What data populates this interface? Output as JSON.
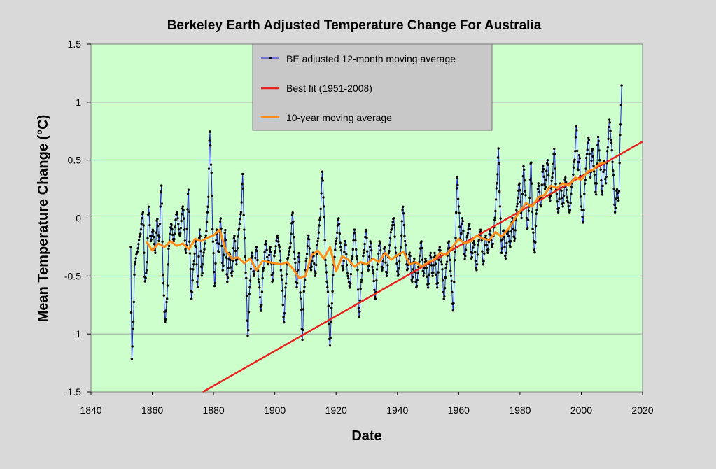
{
  "chart_data": {
    "type": "line",
    "title": "Berkeley Earth Adjusted Temperature Change For Australia",
    "xlabel": "Date",
    "ylabel": "Mean  Temperature  Change  (°C)",
    "xlim": [
      1840,
      2020
    ],
    "ylim": [
      -1.5,
      1.5
    ],
    "x_ticks": [
      "1840",
      "1860",
      "1880",
      "1900",
      "1920",
      "1940",
      "1960",
      "1980",
      "2000",
      "2020"
    ],
    "y_ticks": [
      "1.5",
      "1",
      "0.5",
      "0",
      "-0.5",
      "-1",
      "-1.5"
    ],
    "grid": "horizontal",
    "legend_position": "top-center",
    "colors": {
      "plot_background": "#ccffcc",
      "page_background": "#d9d9d9",
      "legend_background": "#c8c8c8",
      "moving_average": "#1f1fd0",
      "moving_average_points": "#000000",
      "best_fit": "#e8231f",
      "decadal_average": "#ff8c1a"
    },
    "series": [
      {
        "name": "BE adjusted 12-month moving average",
        "style": "line-with-dots",
        "keypoints": [
          [
            1853.0,
            -0.25
          ],
          [
            1853.3,
            -1.22
          ],
          [
            1853.8,
            -0.9
          ],
          [
            1854.3,
            -0.4
          ],
          [
            1855.0,
            -0.3
          ],
          [
            1856.0,
            -0.15
          ],
          [
            1857.0,
            0.05
          ],
          [
            1857.6,
            -0.55
          ],
          [
            1858.2,
            -0.45
          ],
          [
            1858.8,
            0.1
          ],
          [
            1859.5,
            -0.2
          ],
          [
            1860.2,
            -0.1
          ],
          [
            1861.0,
            -0.3
          ],
          [
            1861.6,
            0.0
          ],
          [
            1862.2,
            -0.2
          ],
          [
            1863.0,
            0.28
          ],
          [
            1863.6,
            -0.55
          ],
          [
            1864.2,
            -0.9
          ],
          [
            1864.8,
            -0.7
          ],
          [
            1865.4,
            -0.25
          ],
          [
            1866.2,
            -0.05
          ],
          [
            1867.0,
            -0.2
          ],
          [
            1868.0,
            0.05
          ],
          [
            1869.0,
            -0.15
          ],
          [
            1870.0,
            0.1
          ],
          [
            1871.0,
            -0.3
          ],
          [
            1871.8,
            0.25
          ],
          [
            1872.3,
            -0.3
          ],
          [
            1872.8,
            -0.7
          ],
          [
            1873.5,
            -0.4
          ],
          [
            1874.2,
            -0.2
          ],
          [
            1874.8,
            -0.6
          ],
          [
            1875.5,
            -0.1
          ],
          [
            1876.2,
            -0.5
          ],
          [
            1876.8,
            -0.3
          ],
          [
            1877.5,
            -0.15
          ],
          [
            1878.2,
            0.1
          ],
          [
            1878.8,
            0.75
          ],
          [
            1879.3,
            0.4
          ],
          [
            1879.8,
            -0.2
          ],
          [
            1880.4,
            -0.6
          ],
          [
            1881.0,
            -0.1
          ],
          [
            1881.6,
            -0.3
          ],
          [
            1882.3,
            0.0
          ],
          [
            1883.0,
            -0.45
          ],
          [
            1883.8,
            -0.1
          ],
          [
            1884.5,
            -0.55
          ],
          [
            1885.2,
            -0.3
          ],
          [
            1886.0,
            -0.5
          ],
          [
            1886.8,
            -0.15
          ],
          [
            1887.5,
            -0.4
          ],
          [
            1888.2,
            -0.1
          ],
          [
            1889.0,
            0.05
          ],
          [
            1889.5,
            0.38
          ],
          [
            1890.0,
            -0.1
          ],
          [
            1890.6,
            -0.5
          ],
          [
            1891.2,
            -1.02
          ],
          [
            1891.8,
            -0.6
          ],
          [
            1892.5,
            -0.3
          ],
          [
            1893.2,
            -0.5
          ],
          [
            1894.0,
            -0.25
          ],
          [
            1894.8,
            -0.55
          ],
          [
            1895.5,
            -0.8
          ],
          [
            1896.2,
            -0.45
          ],
          [
            1897.0,
            -0.2
          ],
          [
            1897.8,
            -0.4
          ],
          [
            1898.5,
            -0.25
          ],
          [
            1899.2,
            -0.55
          ],
          [
            1900.0,
            -0.3
          ],
          [
            1900.8,
            -0.15
          ],
          [
            1901.5,
            -0.25
          ],
          [
            1902.2,
            -0.5
          ],
          [
            1903.0,
            -0.9
          ],
          [
            1903.5,
            -0.6
          ],
          [
            1904.2,
            -0.35
          ],
          [
            1905.0,
            -0.25
          ],
          [
            1905.8,
            0.05
          ],
          [
            1906.5,
            -0.35
          ],
          [
            1907.2,
            -0.6
          ],
          [
            1907.8,
            -0.3
          ],
          [
            1908.5,
            -0.7
          ],
          [
            1909.0,
            -1.05
          ],
          [
            1909.6,
            -0.6
          ],
          [
            1910.3,
            -0.35
          ],
          [
            1911.0,
            -0.15
          ],
          [
            1911.8,
            -0.45
          ],
          [
            1912.5,
            -0.3
          ],
          [
            1913.2,
            -0.5
          ],
          [
            1914.0,
            -0.2
          ],
          [
            1914.8,
            0.0
          ],
          [
            1915.5,
            0.4
          ],
          [
            1916.0,
            0.1
          ],
          [
            1916.6,
            -0.4
          ],
          [
            1917.2,
            -0.6
          ],
          [
            1918.0,
            -1.1
          ],
          [
            1918.6,
            -0.75
          ],
          [
            1919.2,
            -0.4
          ],
          [
            1920.0,
            -0.2
          ],
          [
            1920.8,
            0.0
          ],
          [
            1921.5,
            -0.25
          ],
          [
            1922.2,
            -0.45
          ],
          [
            1923.0,
            -0.2
          ],
          [
            1923.8,
            -0.5
          ],
          [
            1924.5,
            -0.6
          ],
          [
            1925.2,
            -0.35
          ],
          [
            1926.0,
            -0.1
          ],
          [
            1926.8,
            -0.35
          ],
          [
            1927.5,
            -0.85
          ],
          [
            1928.2,
            -0.55
          ],
          [
            1929.0,
            -0.3
          ],
          [
            1929.8,
            -0.1
          ],
          [
            1930.5,
            -0.45
          ],
          [
            1931.2,
            -0.2
          ],
          [
            1932.0,
            -0.45
          ],
          [
            1932.8,
            -0.7
          ],
          [
            1933.5,
            -0.4
          ],
          [
            1934.2,
            -0.2
          ],
          [
            1935.0,
            -0.45
          ],
          [
            1935.8,
            -0.25
          ],
          [
            1936.5,
            -0.5
          ],
          [
            1937.2,
            -0.3
          ],
          [
            1938.0,
            -0.1
          ],
          [
            1938.8,
            0.0
          ],
          [
            1939.5,
            -0.3
          ],
          [
            1940.2,
            -0.5
          ],
          [
            1941.0,
            -0.3
          ],
          [
            1941.8,
            0.1
          ],
          [
            1942.5,
            -0.2
          ],
          [
            1943.2,
            -0.45
          ],
          [
            1944.0,
            -0.3
          ],
          [
            1944.8,
            -0.55
          ],
          [
            1945.5,
            -0.35
          ],
          [
            1946.2,
            -0.6
          ],
          [
            1947.0,
            -0.4
          ],
          [
            1947.8,
            -0.2
          ],
          [
            1948.5,
            -0.5
          ],
          [
            1949.2,
            -0.35
          ],
          [
            1950.0,
            -0.6
          ],
          [
            1950.8,
            -0.3
          ],
          [
            1951.5,
            -0.5
          ],
          [
            1952.2,
            -0.3
          ],
          [
            1953.0,
            -0.6
          ],
          [
            1953.8,
            -0.25
          ],
          [
            1954.5,
            -0.4
          ],
          [
            1955.2,
            -0.7
          ],
          [
            1956.0,
            -0.4
          ],
          [
            1956.8,
            -0.2
          ],
          [
            1957.5,
            -0.5
          ],
          [
            1958.2,
            -0.8
          ],
          [
            1958.8,
            -0.3
          ],
          [
            1959.5,
            0.35
          ],
          [
            1960.0,
            0.1
          ],
          [
            1960.6,
            -0.2
          ],
          [
            1961.2,
            0.0
          ],
          [
            1962.0,
            -0.35
          ],
          [
            1962.8,
            -0.15
          ],
          [
            1963.5,
            -0.05
          ],
          [
            1964.2,
            -0.35
          ],
          [
            1965.0,
            -0.2
          ],
          [
            1965.8,
            -0.45
          ],
          [
            1966.5,
            -0.2
          ],
          [
            1967.2,
            -0.1
          ],
          [
            1968.0,
            -0.4
          ],
          [
            1968.8,
            -0.15
          ],
          [
            1969.5,
            -0.3
          ],
          [
            1970.2,
            -0.1
          ],
          [
            1971.0,
            -0.25
          ],
          [
            1971.8,
            0.0
          ],
          [
            1972.5,
            0.3
          ],
          [
            1973.0,
            0.6
          ],
          [
            1973.5,
            0.1
          ],
          [
            1974.0,
            -0.3
          ],
          [
            1974.6,
            -0.1
          ],
          [
            1975.3,
            -0.35
          ],
          [
            1976.0,
            -0.1
          ],
          [
            1976.8,
            -0.25
          ],
          [
            1977.5,
            0.0
          ],
          [
            1978.2,
            -0.2
          ],
          [
            1979.0,
            0.1
          ],
          [
            1979.8,
            0.3
          ],
          [
            1980.5,
            0.0
          ],
          [
            1981.2,
            0.45
          ],
          [
            1981.8,
            0.2
          ],
          [
            1982.4,
            -0.1
          ],
          [
            1983.0,
            0.1
          ],
          [
            1983.6,
            0.5
          ],
          [
            1984.2,
            -0.1
          ],
          [
            1984.8,
            -0.3
          ],
          [
            1985.4,
            0.05
          ],
          [
            1986.0,
            0.3
          ],
          [
            1986.8,
            0.1
          ],
          [
            1987.5,
            0.45
          ],
          [
            1988.2,
            0.25
          ],
          [
            1989.0,
            0.5
          ],
          [
            1989.8,
            0.15
          ],
          [
            1990.5,
            0.35
          ],
          [
            1991.2,
            0.6
          ],
          [
            1991.8,
            0.25
          ],
          [
            1992.5,
            0.05
          ],
          [
            1993.2,
            0.3
          ],
          [
            1994.0,
            0.1
          ],
          [
            1994.8,
            0.35
          ],
          [
            1995.5,
            0.15
          ],
          [
            1996.2,
            0.05
          ],
          [
            1997.0,
            0.3
          ],
          [
            1997.8,
            0.5
          ],
          [
            1998.4,
            0.8
          ],
          [
            1998.9,
            0.4
          ],
          [
            1999.4,
            0.55
          ],
          [
            2000.0,
            0.1
          ],
          [
            2000.6,
            -0.05
          ],
          [
            2001.2,
            0.3
          ],
          [
            2001.8,
            0.55
          ],
          [
            2002.4,
            0.7
          ],
          [
            2003.0,
            0.35
          ],
          [
            2003.6,
            0.6
          ],
          [
            2004.2,
            0.4
          ],
          [
            2004.8,
            0.2
          ],
          [
            2005.5,
            0.7
          ],
          [
            2006.2,
            0.45
          ],
          [
            2006.8,
            0.2
          ],
          [
            2007.4,
            0.5
          ],
          [
            2008.0,
            0.3
          ],
          [
            2008.6,
            0.6
          ],
          [
            2009.2,
            0.85
          ],
          [
            2009.8,
            0.65
          ],
          [
            2010.4,
            0.4
          ],
          [
            2011.0,
            0.05
          ],
          [
            2011.6,
            0.25
          ],
          [
            2012.2,
            0.15
          ],
          [
            2012.8,
            0.8
          ],
          [
            2013.2,
            1.15
          ]
        ]
      },
      {
        "name": "Best fit (1951-2008)",
        "style": "line",
        "x": [
          1876.5,
          2020
        ],
        "y": [
          -1.5,
          0.66
        ]
      },
      {
        "name": "10-year moving average",
        "style": "line",
        "x": [
          1858,
          1860,
          1862,
          1864,
          1866,
          1868,
          1870,
          1872,
          1874,
          1876,
          1878,
          1880,
          1882,
          1884,
          1886,
          1888,
          1890,
          1892,
          1894,
          1896,
          1898,
          1900,
          1902,
          1904,
          1906,
          1908,
          1910,
          1912,
          1914,
          1916,
          1918,
          1920,
          1922,
          1924,
          1926,
          1928,
          1930,
          1932,
          1934,
          1936,
          1938,
          1940,
          1942,
          1944,
          1946,
          1948,
          1950,
          1952,
          1954,
          1956,
          1958,
          1960,
          1962,
          1964,
          1966,
          1968,
          1970,
          1972,
          1974,
          1976,
          1978,
          1980,
          1982,
          1984,
          1986,
          1988,
          1990,
          1992,
          1994,
          1996,
          1998,
          2000,
          2002,
          2004,
          2006,
          2008
        ],
        "y": [
          -0.2,
          -0.28,
          -0.22,
          -0.25,
          -0.2,
          -0.24,
          -0.22,
          -0.27,
          -0.18,
          -0.2,
          -0.17,
          -0.15,
          -0.1,
          -0.28,
          -0.35,
          -0.34,
          -0.39,
          -0.35,
          -0.45,
          -0.37,
          -0.38,
          -0.39,
          -0.4,
          -0.38,
          -0.44,
          -0.52,
          -0.5,
          -0.32,
          -0.28,
          -0.35,
          -0.25,
          -0.46,
          -0.33,
          -0.36,
          -0.42,
          -0.38,
          -0.4,
          -0.35,
          -0.38,
          -0.3,
          -0.36,
          -0.32,
          -0.29,
          -0.4,
          -0.38,
          -0.42,
          -0.38,
          -0.36,
          -0.3,
          -0.32,
          -0.25,
          -0.18,
          -0.22,
          -0.2,
          -0.15,
          -0.18,
          -0.19,
          -0.12,
          -0.16,
          -0.1,
          -0.02,
          0.06,
          0.13,
          0.1,
          0.18,
          0.2,
          0.28,
          0.26,
          0.3,
          0.28,
          0.35,
          0.33,
          0.4,
          0.42,
          0.47,
          0.48
        ]
      }
    ]
  }
}
